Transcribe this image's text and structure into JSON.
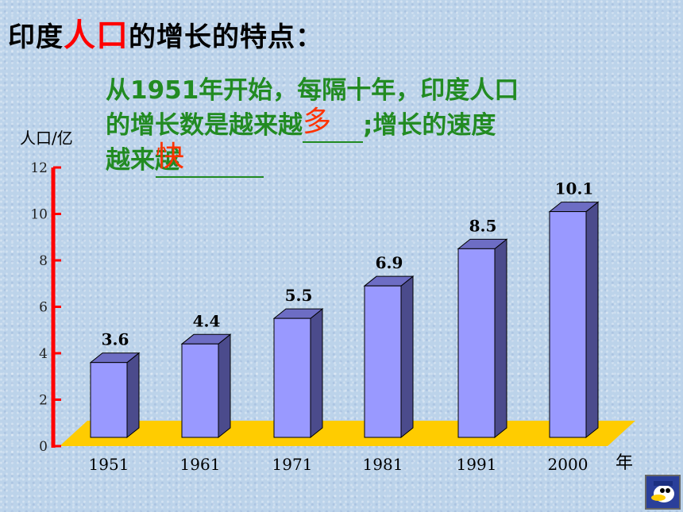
{
  "heading": {
    "prefix": "印度",
    "highlight": "人口",
    "suffix": "的增长的特点："
  },
  "statement": {
    "line1": "从1951年开始，每隔十年，印度人口",
    "line2_before": "的增长数是越来越",
    "answer1": "多",
    "line2_after": ";增长的速度",
    "line3_before": "越来越",
    "answer2": "快"
  },
  "chart_data": {
    "type": "bar",
    "categories": [
      "1951",
      "1961",
      "1971",
      "1981",
      "1991",
      "2000"
    ],
    "values": [
      3.6,
      4.4,
      5.5,
      6.9,
      8.5,
      10.1
    ],
    "value_labels": [
      "3.6",
      "4.4",
      "5.5",
      "6.9",
      "8.5",
      "10.1"
    ],
    "ylabel": "人口/亿",
    "xlabel": "年",
    "ylim": [
      0,
      12
    ],
    "yticks": [
      "0",
      "2",
      "4",
      "6",
      "8",
      "10",
      "12"
    ],
    "grid": false,
    "colors": {
      "bar_front": "#9999ff",
      "bar_side": "#4b4b8c",
      "bar_top": "#6d6dc4",
      "axis": "#ff0000",
      "floor": "#ffcc00"
    }
  }
}
